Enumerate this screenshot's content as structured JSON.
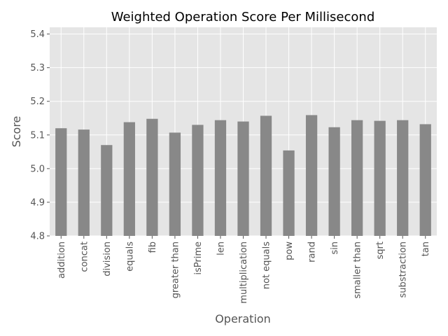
{
  "chart_data": {
    "type": "bar",
    "title": "Weighted Operation Score Per Millisecond",
    "xlabel": "Operation",
    "ylabel": "Score",
    "categories": [
      "addition",
      "concat",
      "division",
      "equals",
      "fib",
      "greater than",
      "isPrime",
      "len",
      "multiplication",
      "not equals",
      "pow",
      "rand",
      "sin",
      "smaller than",
      "sqrt",
      "substraction",
      "tan"
    ],
    "values": [
      5.12,
      5.116,
      5.07,
      5.138,
      5.148,
      5.107,
      5.13,
      5.144,
      5.14,
      5.157,
      5.054,
      5.159,
      5.123,
      5.144,
      5.142,
      5.144,
      5.132
    ],
    "ylim": [
      4.8,
      5.42
    ],
    "yticks": [
      "4.8",
      "4.9",
      "5.0",
      "5.1",
      "5.2",
      "5.3",
      "5.4"
    ],
    "grid": true,
    "colors": {
      "bar": "#888888",
      "plot_background": "#e5e5e5",
      "grid": "#ffffff"
    }
  }
}
